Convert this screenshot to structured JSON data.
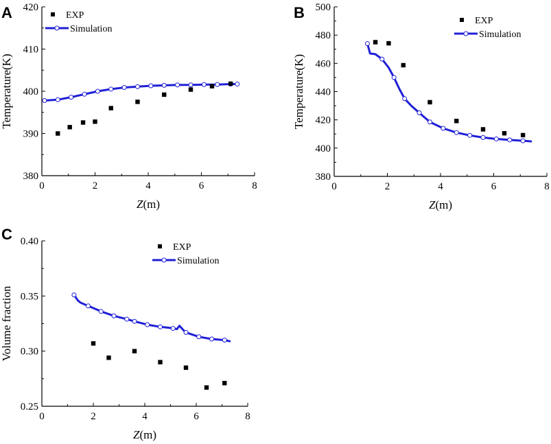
{
  "colors": {
    "simulation": "#1f1fd6",
    "exp": "#000000",
    "axis": "#000000"
  },
  "chart_data": [
    {
      "panel": "A",
      "type": "scatter+line",
      "xlabel_var": "Z",
      "xlabel_unit": "(m)",
      "ylabel": "Temperature(K)",
      "xlim": [
        0,
        8
      ],
      "ylim": [
        380,
        420
      ],
      "xticks": [
        0,
        2,
        4,
        6,
        8
      ],
      "yticks": [
        380,
        390,
        400,
        410,
        420
      ],
      "legend": {
        "position": "top-left",
        "exp": "EXP",
        "sim": "Simulation"
      },
      "exp": {
        "x": [
          0.6,
          1.05,
          1.55,
          2.0,
          2.6,
          3.6,
          4.6,
          5.6,
          6.4,
          7.1
        ],
        "y": [
          390.0,
          391.5,
          392.6,
          392.8,
          396.0,
          397.5,
          399.2,
          400.4,
          401.2,
          401.8
        ]
      },
      "sim": {
        "x": [
          0.1,
          0.6,
          1.1,
          1.6,
          2.1,
          2.6,
          3.1,
          3.6,
          4.1,
          4.6,
          5.1,
          5.6,
          6.1,
          6.6,
          7.1,
          7.35
        ],
        "y": [
          397.8,
          398.0,
          398.6,
          399.3,
          400.0,
          400.5,
          400.9,
          401.1,
          401.3,
          401.4,
          401.5,
          401.5,
          401.6,
          401.6,
          401.7,
          401.7
        ]
      }
    },
    {
      "panel": "B",
      "type": "scatter+line",
      "xlabel_var": "Z",
      "xlabel_unit": "(m)",
      "ylabel": "Temperature(K)",
      "xlim": [
        0,
        8
      ],
      "ylim": [
        380,
        500
      ],
      "xticks": [
        0,
        2,
        4,
        6,
        8
      ],
      "yticks": [
        380,
        400,
        420,
        440,
        460,
        480,
        500
      ],
      "legend": {
        "position": "top-right",
        "exp": "EXP",
        "sim": "Simulation"
      },
      "exp": {
        "x": [
          1.55,
          2.05,
          2.6,
          3.6,
          4.6,
          5.6,
          6.4,
          7.1
        ],
        "y": [
          475.0,
          474.2,
          458.7,
          432.5,
          419.2,
          413.3,
          410.5,
          409.2
        ]
      },
      "sim": {
        "x": [
          1.25,
          1.35,
          1.55,
          1.8,
          2.05,
          2.25,
          2.45,
          2.65,
          2.9,
          3.2,
          3.6,
          4.1,
          4.6,
          5.1,
          5.6,
          6.1,
          6.6,
          7.1,
          7.4
        ],
        "y": [
          474.0,
          467.0,
          466.5,
          463.0,
          457.0,
          450.0,
          442.0,
          435.0,
          430.0,
          425.0,
          418.5,
          414.0,
          411.0,
          409.0,
          407.5,
          406.5,
          405.8,
          405.2,
          404.8
        ]
      },
      "sim_markers_x": [
        1.25,
        1.8,
        2.25,
        2.65,
        3.2,
        3.6,
        4.1,
        4.6,
        5.1,
        5.6,
        6.1,
        6.6,
        7.1
      ]
    },
    {
      "panel": "C",
      "type": "scatter+line",
      "xlabel_var": "Z",
      "xlabel_unit": "(m)",
      "ylabel": "Volume fraction",
      "xlim": [
        0,
        8
      ],
      "ylim": [
        0.25,
        0.4
      ],
      "xticks": [
        0,
        2,
        4,
        6,
        8
      ],
      "yticks": [
        "0.25",
        "0.30",
        "0.35",
        "0.40"
      ],
      "legend": {
        "position": "top-right",
        "exp": "EXP",
        "sim": "Simulation"
      },
      "exp": {
        "x": [
          2.0,
          2.6,
          3.6,
          4.6,
          5.6,
          6.4,
          7.1
        ],
        "y": [
          0.307,
          0.294,
          0.3,
          0.29,
          0.285,
          0.267,
          0.271
        ]
      },
      "sim": {
        "x": [
          1.25,
          1.4,
          1.5,
          1.8,
          2.3,
          2.8,
          3.3,
          3.6,
          4.1,
          4.6,
          5.0,
          5.25,
          5.35,
          5.5,
          5.6,
          6.1,
          6.6,
          7.1,
          7.3
        ],
        "y": [
          0.351,
          0.346,
          0.344,
          0.341,
          0.336,
          0.332,
          0.329,
          0.327,
          0.324,
          0.322,
          0.321,
          0.32,
          0.323,
          0.319,
          0.317,
          0.313,
          0.311,
          0.31,
          0.309
        ]
      },
      "sim_markers_x": [
        1.25,
        1.8,
        2.3,
        2.8,
        3.3,
        3.6,
        4.1,
        4.6,
        5.1,
        5.6,
        6.1,
        6.6,
        7.1
      ]
    }
  ]
}
